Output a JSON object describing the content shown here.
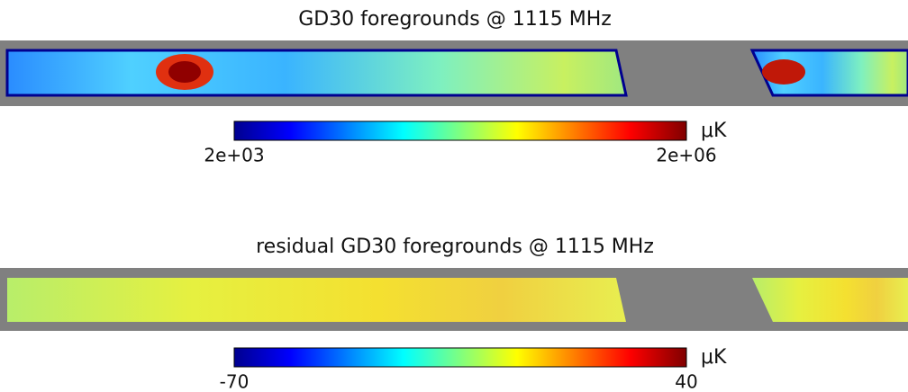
{
  "panels": [
    {
      "title": "GD30 foregrounds @ 1115 MHz",
      "colorbar": {
        "ticks": [
          {
            "value": 2000,
            "label": "2e+03"
          },
          {
            "value": 2000000,
            "label": "2e+06"
          }
        ],
        "unit": "μK"
      }
    },
    {
      "title": "residual GD30 foregrounds @ 1115 MHz",
      "colorbar": {
        "ticks": [
          -70,
          40
        ],
        "unit": "μK"
      }
    }
  ]
}
